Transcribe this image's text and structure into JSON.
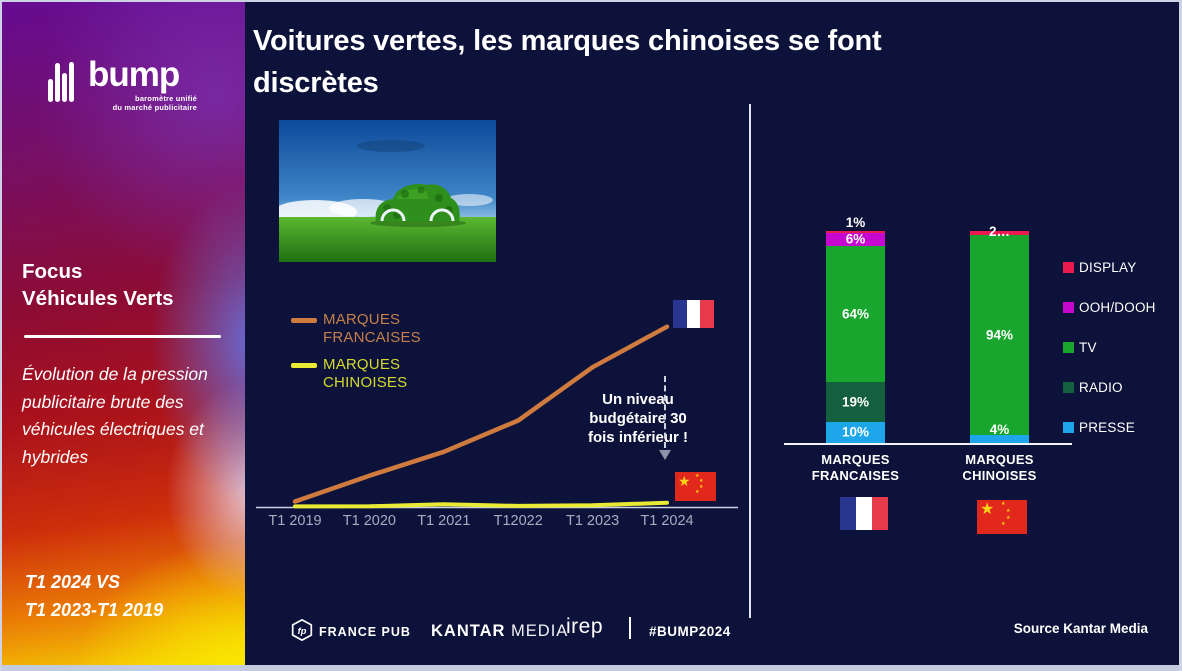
{
  "slide": {
    "title": {
      "line1": "Voitures vertes, les  marques chinoises se font",
      "line2": "discrètes"
    },
    "source": "Source Kantar Media",
    "footer": {
      "fp_monogram": "fp",
      "france_pub": "FRANCE PUB",
      "kantar_bold": "KANTAR",
      "kantar_light": "MEDIA",
      "irep": "irep",
      "hashtag": "#BUMP2024"
    }
  },
  "sidebar": {
    "logo_text": "bump",
    "logo_tagline1": "baromètre unifié",
    "logo_tagline2": "du marché publicitaire",
    "focus_line1": "Focus",
    "focus_line2": "Véhicules Verts",
    "description": "Évolution de la pression publicitaire brute des véhicules électriques et hybrides",
    "period_line1": "T1 2024 VS",
    "period_line2": "T1 2023-T1 2019"
  },
  "chart_data": [
    {
      "type": "line",
      "x": [
        "T1 2019",
        "T1 2020",
        "T1 2021",
        "T12022",
        "T1 2023",
        "T1 2024"
      ],
      "series": [
        {
          "name": "MARQUES FRANCAISES",
          "color": "#cf7a3e",
          "text_color": "#c67f4b",
          "values": [
            3,
            17,
            30,
            47,
            76,
            98
          ]
        },
        {
          "name": "MARQUES CHINOISES",
          "color": "#e9ea33",
          "text_color": "#d6d92c",
          "values": [
            0.3,
            0.4,
            1.5,
            0.6,
            1.0,
            2.3
          ]
        }
      ],
      "ylim": [
        0,
        100
      ],
      "grid": false,
      "legend_position": "upper-left",
      "annotation": "Un niveau budgétaire 30 fois inférieur !",
      "end_flags": [
        "france",
        "china"
      ]
    },
    {
      "type": "stacked-bar",
      "categories": [
        {
          "line1": "MARQUES",
          "line2": "FRANCAISES",
          "flag": "france"
        },
        {
          "line1": "MARQUES",
          "line2": "CHINOISES",
          "flag": "china"
        }
      ],
      "legend": [
        "DISPLAY",
        "OOH/DOOH",
        "TV",
        "RADIO",
        "PRESSE"
      ],
      "legend_position": "right",
      "colors": {
        "DISPLAY": "#ea1a51",
        "OOH/DOOH": "#c607cf",
        "TV": "#19a62e",
        "RADIO": "#14603e",
        "PRESSE": "#1ea6ea"
      },
      "ylim": [
        0,
        100
      ],
      "bars": [
        {
          "top_label": "1%",
          "top_label_position": "above",
          "segments": [
            {
              "name": "DISPLAY",
              "value": 1,
              "label": ""
            },
            {
              "name": "OOH/DOOH",
              "value": 6,
              "label": "6%"
            },
            {
              "name": "TV",
              "value": 64,
              "label": "64%"
            },
            {
              "name": "RADIO",
              "value": 19,
              "label": "19%"
            },
            {
              "name": "PRESSE",
              "value": 10,
              "label": "10%"
            }
          ]
        },
        {
          "top_label": "2…",
          "top_label_position": "overlap",
          "segments": [
            {
              "name": "DISPLAY",
              "value": 2,
              "label": ""
            },
            {
              "name": "TV",
              "value": 94,
              "label": "94%"
            },
            {
              "name": "PRESSE",
              "value": 4,
              "label": "4%"
            }
          ]
        }
      ]
    }
  ]
}
